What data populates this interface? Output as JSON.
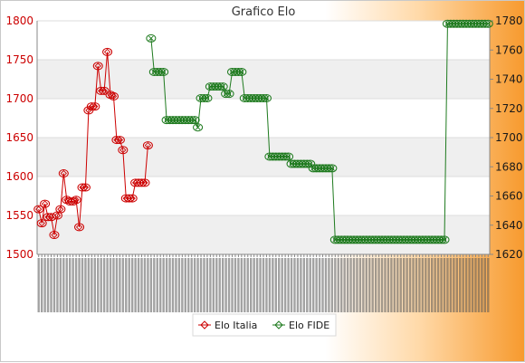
{
  "chart_data": {
    "type": "line",
    "title": "Grafico Elo",
    "xlabel": "",
    "y_left": {
      "lim": [
        1500,
        1800
      ],
      "ticks": [
        1500,
        1550,
        1600,
        1650,
        1700,
        1750,
        1800
      ]
    },
    "y_right": {
      "lim": [
        1620,
        1780
      ],
      "ticks": [
        1620,
        1640,
        1660,
        1680,
        1700,
        1720,
        1740,
        1760,
        1780
      ]
    },
    "grid": true,
    "legend_position": "bottom-center",
    "x_tick_labels_legible": false,
    "series": [
      {
        "name": "Elo Italia",
        "axis": "left",
        "color": "#cc0000",
        "values": [
          1558,
          1540,
          1565,
          1548,
          1548,
          1525,
          1550,
          1558,
          1604,
          1570,
          1568,
          1568,
          1570,
          1535,
          1586,
          1586,
          1685,
          1690,
          1690,
          1742,
          1710,
          1710,
          1760,
          1705,
          1703,
          1647,
          1647,
          1634,
          1572,
          1572,
          1572,
          1592,
          1592,
          1592,
          1592,
          1640
        ]
      },
      {
        "name": "Elo FIDE",
        "axis": "right",
        "color": "#1e7a1e",
        "values": [
          null,
          null,
          null,
          null,
          null,
          null,
          null,
          null,
          null,
          null,
          null,
          null,
          null,
          null,
          null,
          null,
          null,
          null,
          null,
          null,
          null,
          null,
          null,
          null,
          null,
          null,
          null,
          null,
          null,
          null,
          null,
          null,
          null,
          null,
          null,
          null,
          1768,
          1745,
          1745,
          1745,
          1745,
          1712,
          1712,
          1712,
          1712,
          1712,
          1712,
          1712,
          1712,
          1712,
          1712,
          1707,
          1727,
          1727,
          1727,
          1735,
          1735,
          1735,
          1735,
          1735,
          1730,
          1730,
          1745,
          1745,
          1745,
          1745,
          1727,
          1727,
          1727,
          1727,
          1727,
          1727,
          1727,
          1727,
          1687,
          1687,
          1687,
          1687,
          1687,
          1687,
          1687,
          1682,
          1682,
          1682,
          1682,
          1682,
          1682,
          1682,
          1679,
          1679,
          1679,
          1679,
          1679,
          1679,
          1679,
          1630,
          1630,
          1630,
          1630,
          1630,
          1630,
          1630,
          1630,
          1630,
          1630,
          1630,
          1630,
          1630,
          1630,
          1630,
          1630,
          1630,
          1630,
          1630,
          1630,
          1630,
          1630,
          1630,
          1630,
          1630,
          1630,
          1630,
          1630,
          1630,
          1630,
          1630,
          1630,
          1630,
          1630,
          1630,
          1630,
          1778,
          1778,
          1778,
          1778,
          1778,
          1778,
          1778,
          1778,
          1778,
          1778,
          1778,
          1778,
          1778,
          1778
        ]
      }
    ]
  }
}
